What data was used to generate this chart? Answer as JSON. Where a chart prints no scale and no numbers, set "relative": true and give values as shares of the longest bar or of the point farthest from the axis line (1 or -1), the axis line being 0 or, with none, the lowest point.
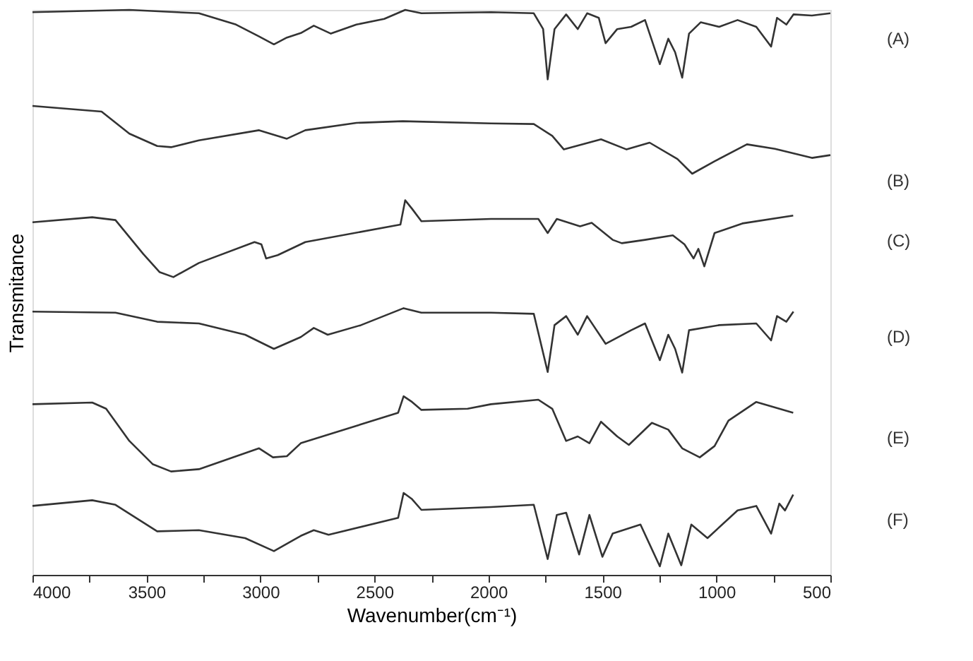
{
  "chart_data": {
    "type": "line",
    "relative": true,
    "xlabel": "Wavenumber(cm⁻¹)",
    "ylabel": "Transmitance",
    "grid": false,
    "xlim": [
      4000,
      500
    ],
    "xticks": [
      4000,
      {
        "value": 3750,
        "label": null
      },
      3500,
      {
        "value": 3250,
        "label": null
      },
      3000,
      {
        "value": 2750,
        "label": null
      },
      2500,
      {
        "value": 2250,
        "label": null
      },
      2000,
      {
        "value": 1750,
        "label": null
      },
      1500,
      {
        "value": 1250,
        "label": null
      },
      1000,
      {
        "value": 750,
        "label": null
      },
      500
    ],
    "series": [
      {
        "name": "(A)",
        "color": "#333333",
        "x": [
          4000,
          3575,
          3270,
          3107,
          3006,
          2941,
          2884,
          2823,
          2766,
          2691,
          2579,
          2457,
          2365,
          2294,
          1989,
          1801,
          1760,
          1740,
          1710,
          1659,
          1608,
          1567,
          1516,
          1486,
          1435,
          1374,
          1313,
          1248,
          1211,
          1181,
          1150,
          1120,
          1069,
          988,
          907,
          825,
          760,
          734,
          693,
          662,
          581,
          500
        ],
        "values": [
          0.996,
          1.0,
          0.994,
          0.974,
          0.953,
          0.939,
          0.951,
          0.959,
          0.972,
          0.958,
          0.974,
          0.984,
          1.0,
          0.994,
          0.996,
          0.994,
          0.966,
          0.877,
          0.966,
          0.992,
          0.966,
          0.994,
          0.986,
          0.941,
          0.966,
          0.97,
          0.982,
          0.904,
          0.949,
          0.925,
          0.88,
          0.958,
          0.978,
          0.97,
          0.982,
          0.97,
          0.935,
          0.986,
          0.974,
          0.992,
          0.99,
          0.994
        ]
      },
      {
        "name": "(B)",
        "color": "#333333",
        "x": [
          4000,
          3697,
          3575,
          3453,
          3392,
          3270,
          3006,
          2884,
          2803,
          2579,
          2376,
          1989,
          1801,
          1720,
          1669,
          1506,
          1394,
          1293,
          1171,
          1106,
          1008,
          866,
          743,
          581,
          500
        ],
        "values": [
          0.83,
          0.82,
          0.781,
          0.759,
          0.757,
          0.769,
          0.787,
          0.772,
          0.787,
          0.8,
          0.803,
          0.799,
          0.798,
          0.777,
          0.753,
          0.771,
          0.753,
          0.765,
          0.736,
          0.71,
          0.732,
          0.762,
          0.754,
          0.738,
          0.743
        ]
      },
      {
        "name": "(C)",
        "color": "#333333",
        "x": [
          4000,
          3738,
          3636,
          3514,
          3443,
          3382,
          3270,
          3026,
          2996,
          2975,
          2924,
          2803,
          2386,
          2365,
          2335,
          2294,
          1989,
          1781,
          1740,
          1700,
          1598,
          1547,
          1455,
          1415,
          1313,
          1191,
          1140,
          1100,
          1079,
          1053,
          1008,
          886,
          663
        ],
        "values": [
          0.624,
          0.633,
          0.628,
          0.568,
          0.536,
          0.527,
          0.552,
          0.589,
          0.585,
          0.56,
          0.566,
          0.589,
          0.62,
          0.663,
          0.648,
          0.626,
          0.63,
          0.63,
          0.605,
          0.63,
          0.617,
          0.623,
          0.593,
          0.587,
          0.593,
          0.601,
          0.585,
          0.56,
          0.577,
          0.546,
          0.605,
          0.622,
          0.636
        ]
      },
      {
        "name": "(D)",
        "color": "#333333",
        "x": [
          4000,
          3636,
          3453,
          3270,
          3067,
          2941,
          2823,
          2766,
          2705,
          2559,
          2372,
          2294,
          1989,
          1801,
          1740,
          1710,
          1659,
          1608,
          1567,
          1486,
          1374,
          1313,
          1248,
          1211,
          1181,
          1150,
          1120,
          988,
          825,
          760,
          734,
          693,
          662
        ],
        "values": [
          0.466,
          0.464,
          0.448,
          0.445,
          0.425,
          0.4,
          0.421,
          0.437,
          0.425,
          0.442,
          0.472,
          0.464,
          0.464,
          0.462,
          0.359,
          0.442,
          0.458,
          0.425,
          0.458,
          0.409,
          0.433,
          0.445,
          0.38,
          0.425,
          0.4,
          0.358,
          0.433,
          0.442,
          0.445,
          0.415,
          0.458,
          0.448,
          0.466
        ]
      },
      {
        "name": "(E)",
        "color": "#333333",
        "x": [
          4000,
          3738,
          3677,
          3575,
          3473,
          3392,
          3270,
          3006,
          2945,
          2884,
          2823,
          2396,
          2372,
          2335,
          2294,
          2091,
          1989,
          1781,
          1720,
          1659,
          1608,
          1557,
          1506,
          1435,
          1384,
          1283,
          1211,
          1150,
          1073,
          1008,
          947,
          825,
          663
        ],
        "values": [
          0.302,
          0.305,
          0.294,
          0.237,
          0.196,
          0.183,
          0.187,
          0.224,
          0.208,
          0.21,
          0.233,
          0.287,
          0.316,
          0.306,
          0.292,
          0.294,
          0.302,
          0.31,
          0.294,
          0.237,
          0.245,
          0.233,
          0.271,
          0.245,
          0.23,
          0.269,
          0.257,
          0.224,
          0.208,
          0.228,
          0.273,
          0.306,
          0.287
        ]
      },
      {
        "name": "(F)",
        "color": "#333333",
        "x": [
          4000,
          3738,
          3636,
          3453,
          3270,
          3067,
          2941,
          2823,
          2766,
          2701,
          2396,
          2372,
          2335,
          2294,
          1989,
          1801,
          1740,
          1700,
          1659,
          1602,
          1557,
          1500,
          1455,
          1333,
          1248,
          1211,
          1154,
          1110,
          1039,
          907,
          825,
          760,
          724,
          699,
          663
        ],
        "values": [
          0.122,
          0.132,
          0.124,
          0.077,
          0.079,
          0.065,
          0.042,
          0.069,
          0.079,
          0.071,
          0.101,
          0.145,
          0.134,
          0.115,
          0.12,
          0.124,
          0.028,
          0.106,
          0.11,
          0.036,
          0.106,
          0.032,
          0.073,
          0.089,
          0.015,
          0.073,
          0.017,
          0.089,
          0.065,
          0.114,
          0.122,
          0.073,
          0.126,
          0.114,
          0.142
        ]
      }
    ]
  }
}
